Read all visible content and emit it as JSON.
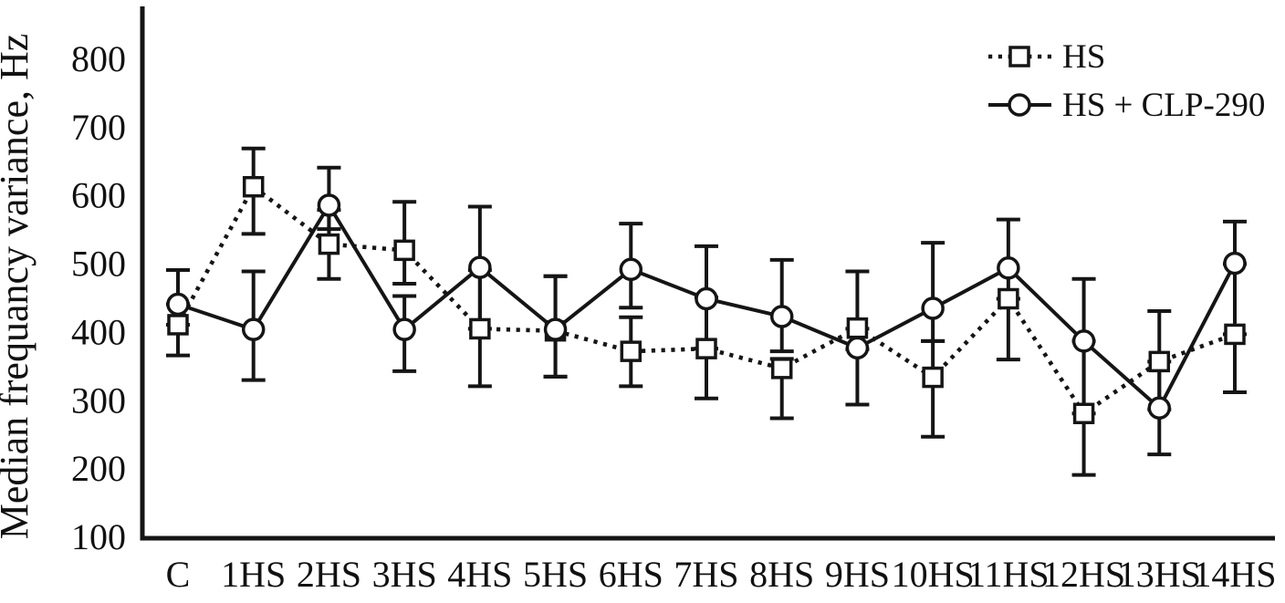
{
  "figure": {
    "background": "#ffffff",
    "ink_color": "#151515",
    "marker_fill": "#ffffff"
  },
  "chart_data": {
    "type": "line",
    "title": "",
    "xlabel": "",
    "ylabel": "Median frequancy variance, Hz",
    "ylim": [
      100,
      875
    ],
    "yticks": [
      100,
      200,
      300,
      400,
      500,
      600,
      700,
      800
    ],
    "grid": false,
    "error_bars": true,
    "legend_position": "top-right",
    "categories": [
      "C",
      "1HS",
      "2HS",
      "3HS",
      "4HS",
      "5HS",
      "6HS",
      "7HS",
      "8HS",
      "9HS",
      "10HS",
      "11HS",
      "12HS",
      "13HS",
      "14HS"
    ],
    "series": [
      {
        "name": "HS",
        "marker": "square",
        "line_style": "dotted",
        "values": [
          410,
          612,
          528,
          519,
          404,
          401,
          371,
          375,
          346,
          405,
          333,
          448,
          280,
          356,
          396
        ],
        "err_lo": [
          365,
          543,
          477,
          470,
          320,
          334,
          320,
          302,
          273,
          374,
          246,
          359,
          190,
          286,
          311
        ],
        "err_hi": [
          440,
          668,
          578,
          590,
          490,
          481,
          421,
          450,
          360,
          488,
          386,
          448,
          386,
          430,
          499
        ]
      },
      {
        "name": "HS + CLP-290",
        "marker": "circle",
        "line_style": "solid",
        "values": [
          440,
          403,
          585,
          403,
          494,
          403,
          491,
          448,
          422,
          376,
          434,
          493,
          386,
          288,
          500
        ],
        "err_lo": [
          410,
          329,
          550,
          342,
          404,
          334,
          435,
          375,
          371,
          293,
          386,
          448,
          280,
          220,
          396
        ],
        "err_hi": [
          490,
          488,
          640,
          452,
          583,
          481,
          558,
          525,
          505,
          404,
          530,
          564,
          477,
          356,
          561
        ]
      }
    ]
  }
}
